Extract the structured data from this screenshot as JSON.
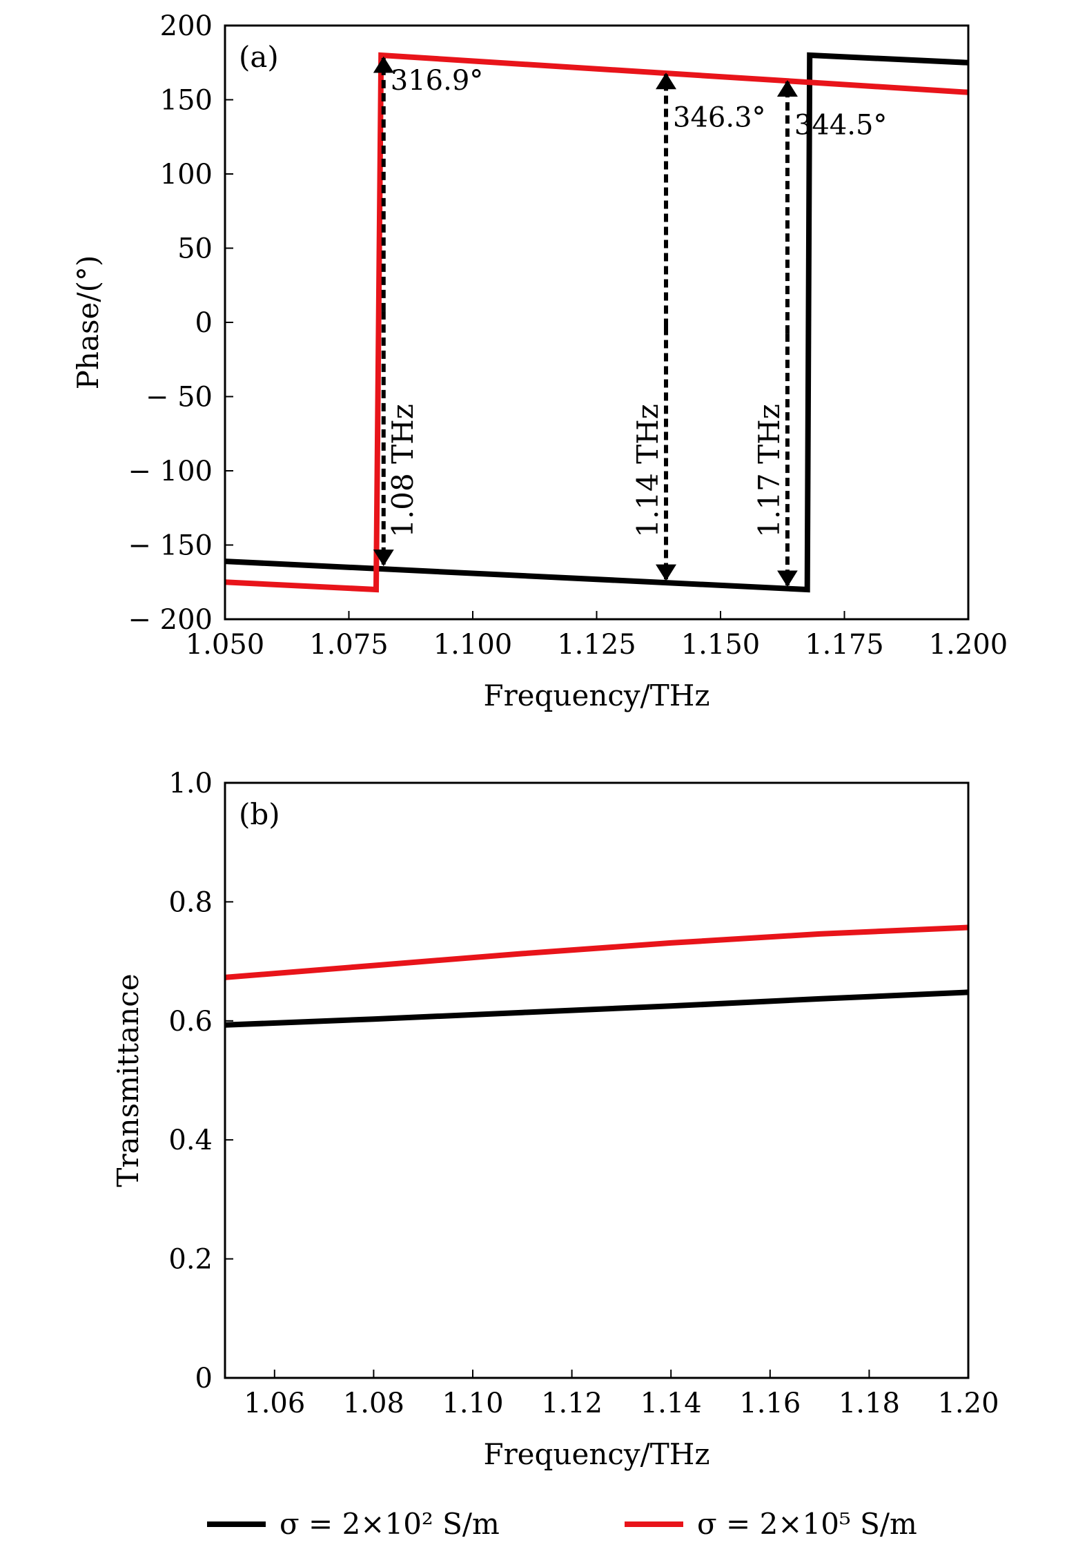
{
  "chart_data": [
    {
      "type": "line",
      "panel_label": "(a)",
      "xlabel": "Frequency/THz",
      "ylabel": "Phase/(°)",
      "xlim": [
        1.05,
        1.2
      ],
      "ylim": [
        -200,
        200
      ],
      "xticks": [
        "1.050",
        "1.075",
        "1.100",
        "1.125",
        "1.150",
        "1.175",
        "1.200"
      ],
      "yticks": [
        "200",
        "150",
        "100",
        "50",
        "0",
        "− 50",
        "− 100",
        "− 150",
        "− 200"
      ],
      "series": [
        {
          "name": "σ = 2×10² S/m",
          "color": "#000000",
          "x": [
            1.05,
            1.1675,
            1.168,
            1.2
          ],
          "y": [
            -161,
            -180,
            180,
            175
          ]
        },
        {
          "name": "σ = 2×10⁵ S/m",
          "color": "#e8141a",
          "x": [
            1.05,
            1.0805,
            1.0815,
            1.2
          ],
          "y": [
            -175,
            -180,
            180,
            155
          ]
        }
      ],
      "annotations": [
        {
          "freq_label": "1.08 THz",
          "phase_diff": "316.9°",
          "x": 1.082,
          "y_top": 180,
          "y_bottom": -165
        },
        {
          "freq_label": "1.14 THz",
          "phase_diff": "346.3°",
          "x": 1.139,
          "y_top": 169,
          "y_bottom": -175
        },
        {
          "freq_label": "1.17 THz",
          "phase_diff": "344.5°",
          "x": 1.1635,
          "y_top": 164,
          "y_bottom": -179
        }
      ]
    },
    {
      "type": "line",
      "panel_label": "(b)",
      "xlabel": "Frequency/THz",
      "ylabel": "Transmittance",
      "xlim": [
        1.05,
        1.2
      ],
      "ylim": [
        0,
        1.0
      ],
      "xticks": [
        "1.06",
        "1.08",
        "1.10",
        "1.12",
        "1.14",
        "1.16",
        "1.18",
        "1.20"
      ],
      "yticks": [
        "1.0",
        "0.8",
        "0.6",
        "0.4",
        "0.2",
        "0"
      ],
      "series": [
        {
          "name": "σ = 2×10² S/m",
          "color": "#000000",
          "x": [
            1.05,
            1.08,
            1.11,
            1.14,
            1.17,
            1.2
          ],
          "y": [
            0.593,
            0.603,
            0.614,
            0.625,
            0.637,
            0.648
          ]
        },
        {
          "name": "σ = 2×10⁵ S/m",
          "color": "#e8141a",
          "x": [
            1.05,
            1.08,
            1.11,
            1.14,
            1.17,
            1.2
          ],
          "y": [
            0.673,
            0.693,
            0.713,
            0.731,
            0.746,
            0.757
          ]
        }
      ]
    }
  ],
  "legend": {
    "placement": "bottom",
    "items": [
      {
        "label": "σ = 2×10² S/m",
        "color": "#000000"
      },
      {
        "label": "σ = 2×10⁵ S/m",
        "color": "#e8141a"
      }
    ]
  }
}
